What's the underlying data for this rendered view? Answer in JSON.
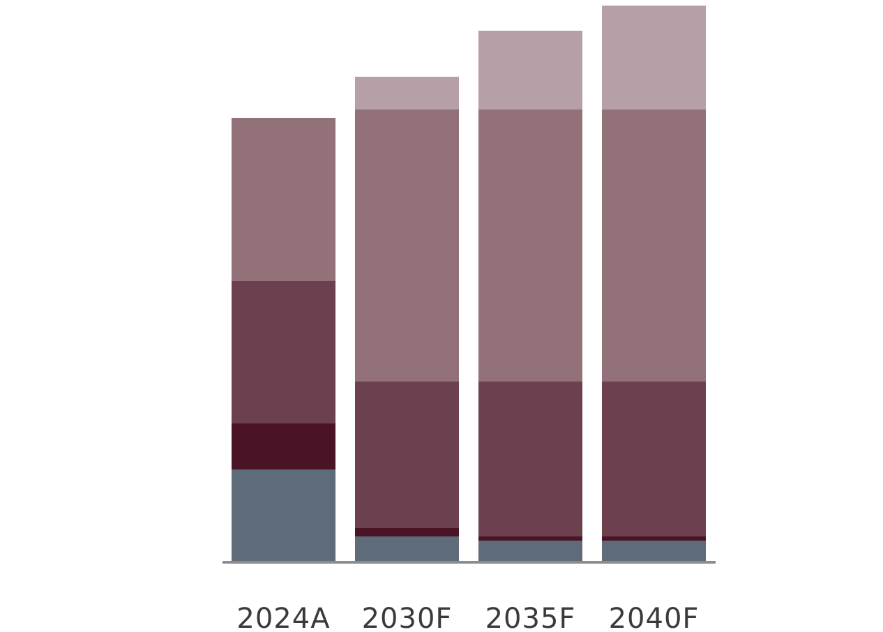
{
  "chart_data": {
    "type": "bar",
    "stacked": true,
    "title": "",
    "xlabel": "",
    "ylabel": "",
    "categories": [
      "2024A",
      "2030F",
      "2035F",
      "2040F"
    ],
    "series": [
      {
        "color": "#5e6b78",
        "values": [
          131,
          35,
          29,
          29
        ]
      },
      {
        "color": "#4a1426",
        "values": [
          66,
          12,
          6,
          6
        ]
      },
      {
        "color": "#6d4050",
        "values": [
          204,
          210,
          222,
          222
        ]
      },
      {
        "color": "#927179",
        "values": [
          234,
          390,
          390,
          390
        ]
      },
      {
        "color": "#b69fa6",
        "values": [
          0,
          47,
          113,
          149
        ]
      }
    ],
    "ylim": [
      0,
      800
    ],
    "grid": false,
    "legend": "none",
    "baseline_color": "#8c8c8c"
  }
}
